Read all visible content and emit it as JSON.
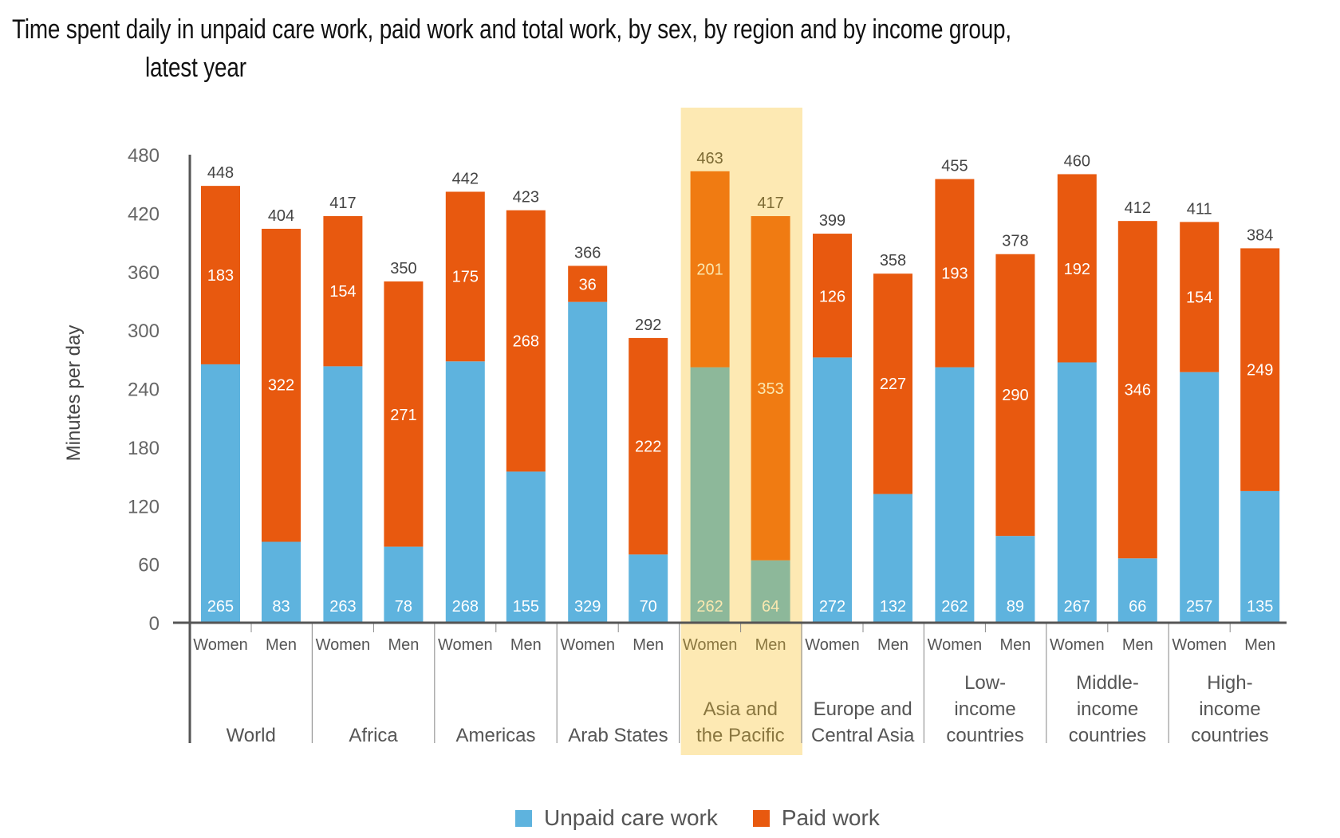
{
  "chart_data": {
    "type": "bar",
    "stacked": true,
    "title": "Time spent daily in unpaid care work, paid work and total work, by sex, by region and by income group,",
    "title_line2": "latest year",
    "ylabel": "Minutes per day",
    "xlabel": "",
    "ylim": [
      0,
      480
    ],
    "yticks": [
      0,
      60,
      120,
      180,
      240,
      300,
      360,
      420,
      480
    ],
    "grid": false,
    "legend_position": "bottom-center",
    "highlight_group": "Asia and the Pacific",
    "colors": {
      "unpaid": "#5eb3de",
      "paid": "#e8590f",
      "unpaid_highlight": "#8db89a",
      "paid_highlight": "#f07b12",
      "highlight_band": "#fde9b3",
      "axis": "#555555"
    },
    "legend": [
      {
        "name": "Unpaid care work",
        "key": "unpaid"
      },
      {
        "name": "Paid work",
        "key": "paid"
      }
    ],
    "sex_labels": [
      "Women",
      "Men"
    ],
    "groups": [
      {
        "name": [
          "World"
        ],
        "bars": [
          {
            "sex": "Women",
            "unpaid": 265,
            "paid": 183,
            "total": 448
          },
          {
            "sex": "Men",
            "unpaid": 83,
            "paid": 322,
            "total": 404
          }
        ]
      },
      {
        "name": [
          "Africa"
        ],
        "bars": [
          {
            "sex": "Women",
            "unpaid": 263,
            "paid": 154,
            "total": 417
          },
          {
            "sex": "Men",
            "unpaid": 78,
            "paid": 271,
            "total": 350
          }
        ]
      },
      {
        "name": [
          "Americas"
        ],
        "bars": [
          {
            "sex": "Women",
            "unpaid": 268,
            "paid": 175,
            "total": 442
          },
          {
            "sex": "Men",
            "unpaid": 155,
            "paid": 268,
            "total": 423
          }
        ]
      },
      {
        "name": [
          "Arab States"
        ],
        "bars": [
          {
            "sex": "Women",
            "unpaid": 329,
            "paid": 36,
            "total": 366
          },
          {
            "sex": "Men",
            "unpaid": 70,
            "paid": 222,
            "total": 292
          }
        ]
      },
      {
        "name": [
          "Asia and",
          "the Pacific"
        ],
        "highlight": true,
        "bars": [
          {
            "sex": "Women",
            "unpaid": 262,
            "paid": 201,
            "total": 463
          },
          {
            "sex": "Men",
            "unpaid": 64,
            "paid": 353,
            "total": 417
          }
        ]
      },
      {
        "name": [
          "Europe and",
          "Central Asia"
        ],
        "bars": [
          {
            "sex": "Women",
            "unpaid": 272,
            "paid": 126,
            "total": 399
          },
          {
            "sex": "Men",
            "unpaid": 132,
            "paid": 227,
            "total": 358
          }
        ]
      },
      {
        "name": [
          "Low-",
          "income",
          "countries"
        ],
        "bars": [
          {
            "sex": "Women",
            "unpaid": 262,
            "paid": 193,
            "total": 455
          },
          {
            "sex": "Men",
            "unpaid": 89,
            "paid": 290,
            "total": 378
          }
        ]
      },
      {
        "name": [
          "Middle-",
          "income",
          "countries"
        ],
        "bars": [
          {
            "sex": "Women",
            "unpaid": 267,
            "paid": 192,
            "total": 460
          },
          {
            "sex": "Men",
            "unpaid": 66,
            "paid": 346,
            "total": 412
          }
        ]
      },
      {
        "name": [
          "High-",
          "income",
          "countries"
        ],
        "bars": [
          {
            "sex": "Women",
            "unpaid": 257,
            "paid": 154,
            "total": 411
          },
          {
            "sex": "Men",
            "unpaid": 135,
            "paid": 249,
            "total": 384
          }
        ]
      }
    ]
  }
}
